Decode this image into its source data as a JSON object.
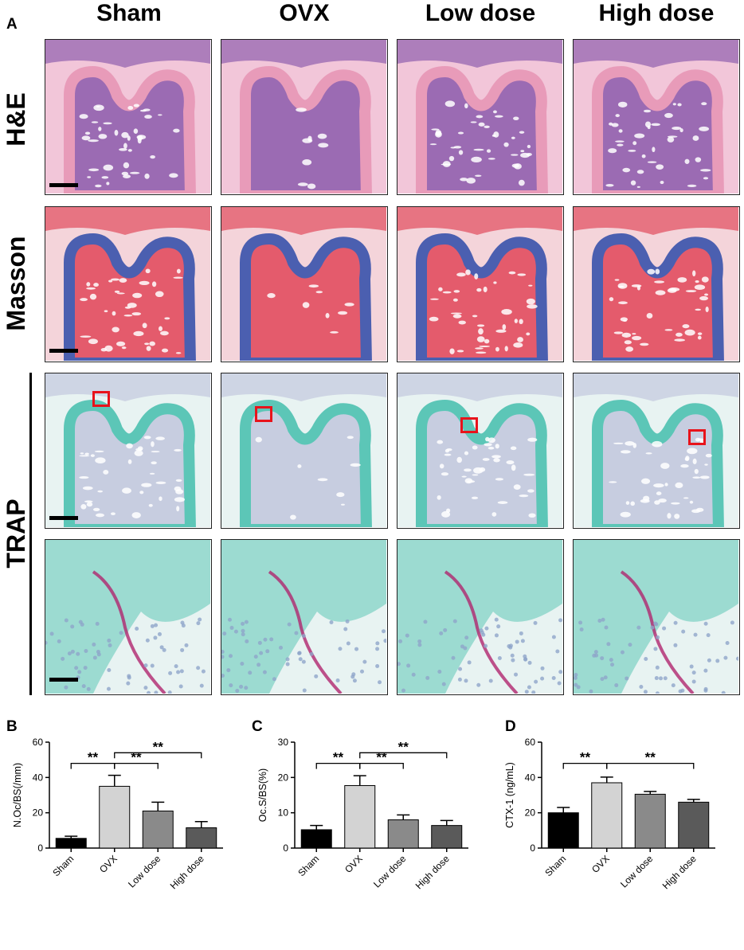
{
  "figure": {
    "panel_labels": [
      "A",
      "B",
      "C",
      "D"
    ],
    "columns": [
      "Sham",
      "OVX",
      "Low dose",
      "High dose"
    ],
    "rows": [
      "H&E",
      "Masson",
      "TRAP"
    ],
    "stain_colors": {
      "he_bg": "#f2c6d9",
      "he_tissue": "#9b6bb3",
      "he_bone": "#e89bb9",
      "masson_bg": "#f4d4da",
      "masson_marrow": "#e45b6c",
      "masson_bone": "#4b5fb0",
      "trap_bg": "#e8f3f2",
      "trap_cart": "#5cc6b7",
      "trap_marrow": "#c7cde0",
      "trap_osteoclast": "#b0266e",
      "roi_box": "#e8131b"
    }
  },
  "chart_data": [
    {
      "panel": "B",
      "type": "bar",
      "categories": [
        "Sham",
        "OVX",
        "Low dose",
        "High dose"
      ],
      "values": [
        5.5,
        35,
        21,
        11.5
      ],
      "errors": [
        1.2,
        6.2,
        5,
        3.5
      ],
      "colors": [
        "#000000",
        "#d3d3d3",
        "#8a8a8a",
        "#5a5a5a"
      ],
      "ylabel": "N.Oc/BS(/mm)",
      "ylim": [
        0,
        60
      ],
      "yticks": [
        0,
        20,
        40,
        60
      ],
      "significance": [
        {
          "from": 0,
          "to": 1,
          "label": "**",
          "level": 48
        },
        {
          "from": 1,
          "to": 2,
          "label": "**",
          "level": 48
        },
        {
          "from": 1,
          "to": 3,
          "label": "**",
          "level": 54
        }
      ]
    },
    {
      "panel": "C",
      "type": "bar",
      "categories": [
        "Sham",
        "OVX",
        "Low dose",
        "High dose"
      ],
      "values": [
        5.2,
        17.7,
        8,
        6.4
      ],
      "errors": [
        1.2,
        2.8,
        1.4,
        1.4
      ],
      "colors": [
        "#000000",
        "#d3d3d3",
        "#8a8a8a",
        "#5a5a5a"
      ],
      "ylabel": "Oc.S/BS(%)",
      "ylim": [
        0,
        30
      ],
      "yticks": [
        0,
        10,
        20,
        30
      ],
      "significance": [
        {
          "from": 0,
          "to": 1,
          "label": "**",
          "level": 24
        },
        {
          "from": 1,
          "to": 2,
          "label": "**",
          "level": 24
        },
        {
          "from": 1,
          "to": 3,
          "label": "**",
          "level": 27
        }
      ]
    },
    {
      "panel": "D",
      "type": "bar",
      "categories": [
        "Sham",
        "OVX",
        "Low dose",
        "High dose"
      ],
      "values": [
        20,
        37,
        30.5,
        26
      ],
      "errors": [
        3,
        3.2,
        1.6,
        1.6
      ],
      "colors": [
        "#000000",
        "#d3d3d3",
        "#8a8a8a",
        "#5a5a5a"
      ],
      "ylabel": "CTX-1 (ng/mL)",
      "ylim": [
        0,
        60
      ],
      "yticks": [
        0,
        20,
        40,
        60
      ],
      "significance": [
        {
          "from": 0,
          "to": 1,
          "label": "**",
          "level": 48
        },
        {
          "from": 1,
          "to": 3,
          "label": "**",
          "level": 48
        }
      ]
    }
  ]
}
